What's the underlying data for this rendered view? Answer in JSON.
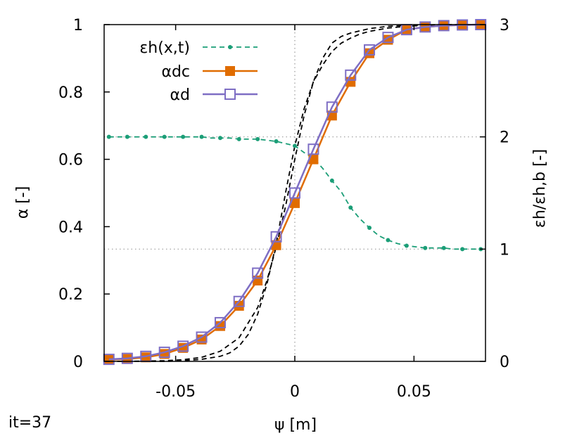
{
  "annotation": "it=37",
  "chart_data": {
    "type": "line",
    "xlabel": "ψ [m]",
    "ylabel": "α [-]",
    "y2label": "εh/εh,b [-]",
    "xlim": [
      -0.08,
      0.08
    ],
    "ylim": [
      0,
      1
    ],
    "y2lim": [
      0,
      3
    ],
    "xticks": [
      "-0.05",
      "0",
      "0.05"
    ],
    "yticks": [
      "0",
      "0.2",
      "0.4",
      "0.6",
      "0.8",
      "1"
    ],
    "y2ticks": [
      "0",
      "1",
      "2",
      "3"
    ],
    "grid": "dotted",
    "legend_position": "top-right",
    "legend": [
      {
        "label": "εh(x,t)",
        "color": "#1b9e77",
        "style": "dashed-dots"
      },
      {
        "label": "αdc",
        "color": "#e06c00",
        "style": "line-filled-square"
      },
      {
        "label": "αd",
        "color": "#7e6ec4",
        "style": "line-open-square"
      }
    ],
    "x": [
      -0.078,
      -0.0703,
      -0.0625,
      -0.0547,
      -0.0469,
      -0.0391,
      -0.0313,
      -0.0234,
      -0.0156,
      -0.0078,
      0.0,
      0.0078,
      0.0156,
      0.0234,
      0.0313,
      0.0391,
      0.0469,
      0.0547,
      0.0625,
      0.0703,
      0.078
    ],
    "series": [
      {
        "name": "εh(x,t)",
        "axis": "y2",
        "color": "#1b9e77",
        "x": [
          -0.078,
          -0.074,
          -0.0703,
          -0.0664,
          -0.0625,
          -0.0586,
          -0.0547,
          -0.0508,
          -0.0469,
          -0.043,
          -0.0391,
          -0.0352,
          -0.0313,
          -0.0273,
          -0.0234,
          -0.0195,
          -0.0156,
          -0.0117,
          -0.0078,
          -0.0039,
          0.0,
          0.0039,
          0.0078,
          0.0117,
          0.0156,
          0.0195,
          0.0234,
          0.0273,
          0.0313,
          0.0352,
          0.0391,
          0.043,
          0.0469,
          0.0508,
          0.0547,
          0.0586,
          0.0625,
          0.0664,
          0.0703,
          0.0742,
          0.078
        ],
        "values": [
          2.0,
          2.0,
          2.0,
          2.0,
          2.0,
          2.0,
          2.0,
          2.0,
          2.0,
          2.0,
          2.0,
          1.99,
          1.99,
          1.99,
          1.98,
          1.98,
          1.98,
          1.97,
          1.96,
          1.94,
          1.92,
          1.86,
          1.81,
          1.72,
          1.61,
          1.51,
          1.37,
          1.27,
          1.19,
          1.12,
          1.08,
          1.05,
          1.03,
          1.02,
          1.01,
          1.01,
          1.01,
          1.0,
          1.0,
          1.0,
          1.0
        ]
      },
      {
        "name": "αdc",
        "axis": "y",
        "color": "#e06c00",
        "values": [
          0.005,
          0.007,
          0.012,
          0.022,
          0.04,
          0.065,
          0.105,
          0.165,
          0.24,
          0.345,
          0.47,
          0.6,
          0.73,
          0.83,
          0.915,
          0.955,
          0.985,
          0.993,
          0.997,
          0.999,
          1.0
        ]
      },
      {
        "name": "αd",
        "axis": "y",
        "color": "#7e6ec4",
        "values": [
          0.006,
          0.009,
          0.015,
          0.027,
          0.045,
          0.072,
          0.115,
          0.178,
          0.262,
          0.37,
          0.5,
          0.63,
          0.755,
          0.85,
          0.925,
          0.962,
          0.985,
          0.993,
          0.997,
          0.999,
          1.0
        ]
      },
      {
        "axis": "y",
        "color": "#000000",
        "style": "dashed",
        "x": [
          -0.078,
          -0.0703,
          -0.0625,
          -0.0547,
          -0.0469,
          -0.0391,
          -0.0313,
          -0.0234,
          -0.0156,
          -0.0117,
          -0.0078,
          -0.0039,
          0.0,
          0.0039,
          0.0078,
          0.0117,
          0.0156,
          0.0195,
          0.0234,
          0.0313,
          0.0391,
          0.0469,
          0.0547,
          0.0625,
          0.0703,
          0.078
        ],
        "values": [
          0.0,
          0.0,
          0.001,
          0.002,
          0.005,
          0.012,
          0.03,
          0.07,
          0.16,
          0.24,
          0.34,
          0.46,
          0.6,
          0.73,
          0.83,
          0.9,
          0.945,
          0.965,
          0.975,
          0.988,
          0.995,
          0.998,
          0.999,
          1.0,
          1.0,
          1.0
        ]
      },
      {
        "axis": "y",
        "color": "#000000",
        "style": "dashed",
        "x": [
          -0.078,
          -0.0703,
          -0.0625,
          -0.0547,
          -0.0469,
          -0.0391,
          -0.0313,
          -0.0273,
          -0.0234,
          -0.0195,
          -0.0156,
          -0.0117,
          -0.0078,
          -0.0039,
          0.0,
          0.0039,
          0.0078,
          0.0117,
          0.0156,
          0.0195,
          0.0234,
          0.0273,
          0.0313,
          0.0391,
          0.0469,
          0.0547,
          0.0625,
          0.0703,
          0.078
        ],
        "values": [
          0.0,
          0.0,
          0.0,
          0.0,
          0.002,
          0.006,
          0.015,
          0.025,
          0.045,
          0.08,
          0.14,
          0.23,
          0.35,
          0.5,
          0.64,
          0.75,
          0.83,
          0.88,
          0.92,
          0.945,
          0.96,
          0.972,
          0.98,
          0.99,
          0.995,
          0.998,
          0.999,
          1.0,
          1.0
        ]
      }
    ]
  }
}
